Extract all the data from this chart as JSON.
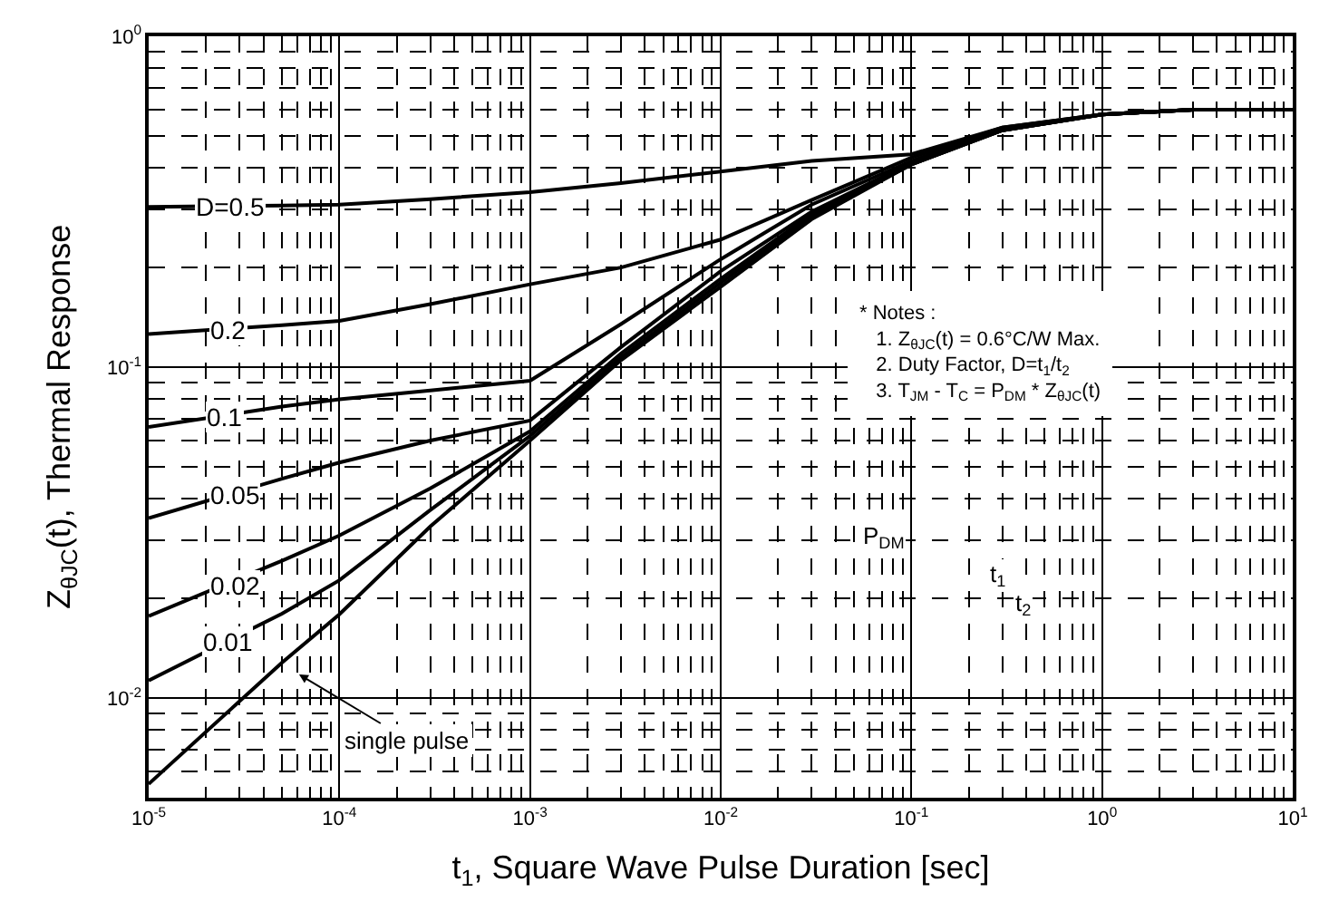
{
  "chart_data": {
    "type": "line",
    "xlabel": "t$_{1}$, Square Wave Pulse Duration [sec]",
    "ylabel": "Z$_{θJC}$(t), Thermal Response",
    "x": [
      1e-05,
      5e-05,
      0.0001,
      0.0003,
      0.001,
      0.003,
      0.01,
      0.03,
      0.1,
      0.3,
      1,
      3,
      10
    ],
    "series": [
      {
        "color": "#000000",
        "values": [
          0.305,
          0.308,
          0.31,
          0.322,
          0.338,
          0.36,
          0.39,
          0.42,
          0.44,
          0.53,
          0.58,
          0.6,
          0.6
        ]
      },
      {
        "color": "#000000",
        "values": [
          0.126,
          0.134,
          0.138,
          0.155,
          0.178,
          0.2,
          0.243,
          0.32,
          0.43,
          0.53,
          0.58,
          0.6,
          0.6
        ]
      },
      {
        "color": "#000000",
        "values": [
          0.066,
          0.076,
          0.08,
          0.085,
          0.091,
          0.135,
          0.212,
          0.31,
          0.42,
          0.525,
          0.58,
          0.6,
          0.6
        ]
      },
      {
        "color": "#000000",
        "values": [
          0.035,
          0.046,
          0.0515,
          0.06,
          0.069,
          0.115,
          0.195,
          0.295,
          0.415,
          0.52,
          0.58,
          0.6,
          0.6
        ]
      },
      {
        "color": "#000000",
        "values": [
          0.0177,
          0.026,
          0.031,
          0.043,
          0.064,
          0.11,
          0.185,
          0.29,
          0.41,
          0.52,
          0.58,
          0.6,
          0.6
        ]
      },
      {
        "color": "#000000",
        "values": [
          0.0113,
          0.018,
          0.0227,
          0.037,
          0.062,
          0.107,
          0.18,
          0.285,
          0.41,
          0.52,
          0.58,
          0.6,
          0.6
        ]
      },
      {
        "color": "#000000",
        "values": [
          0.0055,
          0.0128,
          0.0179,
          0.033,
          0.06,
          0.105,
          0.175,
          0.28,
          0.41,
          0.52,
          0.58,
          0.6,
          0.6
        ]
      }
    ],
    "xlim": [
      1e-05,
      10
    ],
    "ylim": [
      0.005,
      1
    ],
    "xticks": [
      {
        "value": 1e-05,
        "label": "10$^{-5}$"
      },
      {
        "value": 0.0001,
        "label": "10$^{-4}$"
      },
      {
        "value": 0.001,
        "label": "10$^{-3}$"
      },
      {
        "value": 0.01,
        "label": "10$^{-2}$"
      },
      {
        "value": 0.1,
        "label": "10$^{-1}$"
      },
      {
        "value": 1,
        "label": "10$^{0}$"
      },
      {
        "value": 10,
        "label": "10$^{1}$"
      }
    ],
    "yticks": [
      {
        "value": 0.01,
        "label": "10$^{-2}$"
      },
      {
        "value": 0.1,
        "label": "10$^{-1}$"
      },
      {
        "value": 1,
        "label": "10$^{0}$"
      }
    ],
    "log": "xy",
    "grid": true,
    "marker": "none",
    "line_style": "solid",
    "annotations": [
      {
        "text": "D=0.5",
        "x": 2.7e-05,
        "y": 0.307
      },
      {
        "text": "0.2",
        "x": 2.6e-05,
        "y": 0.13
      },
      {
        "text": "0.1",
        "x": 2.5e-05,
        "y": 0.071
      },
      {
        "text": "0.05",
        "x": 2.8e-05,
        "y": 0.041
      },
      {
        "text": "0.02",
        "x": 2.8e-05,
        "y": 0.022
      },
      {
        "text": "0.01",
        "x": 2.6e-05,
        "y": 0.0148
      },
      "single pulse",
      "* Notes :",
      "1. Z$_{θJC}$(t) = 0.6°C/W Max.",
      "2. Duty Factor, D=t$_{1}$/t$_{2}$",
      "3. T$_{JM}$ - T$_{C}$ = P$_{DM}$ * Z$_{θJC}$(t)",
      "P$_{DM}$",
      "t$_{1}$",
      "t$_{2}$"
    ]
  }
}
